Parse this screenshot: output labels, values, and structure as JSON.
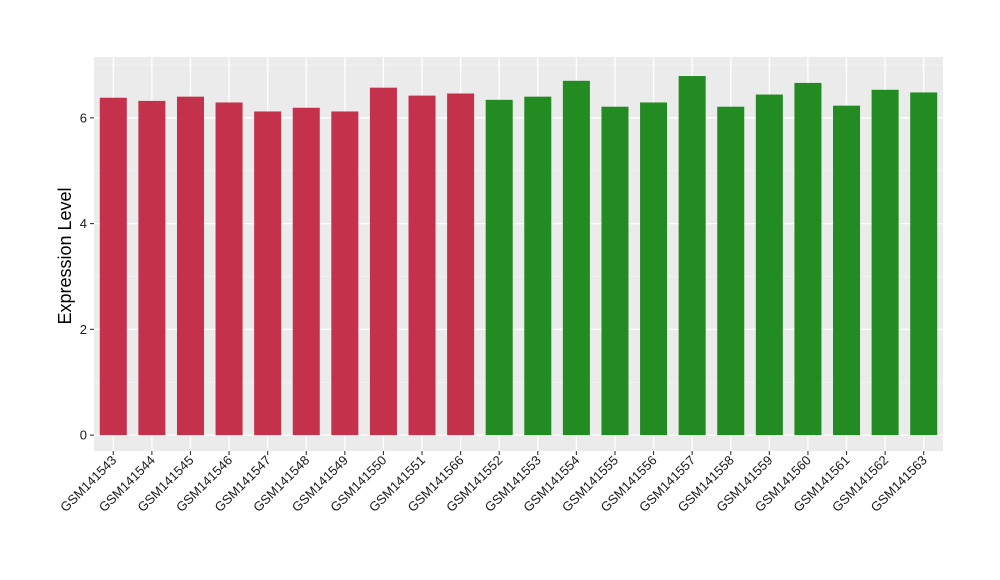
{
  "chart_data": {
    "type": "bar",
    "title": "",
    "xlabel": "",
    "ylabel": "Expression Level",
    "ylim": [
      -0.3,
      7.15
    ],
    "yticks": [
      0,
      2,
      4,
      6
    ],
    "grid": true,
    "legend": "none",
    "panel_color": "#ebebeb",
    "categories": [
      "GSM141543",
      "GSM141544",
      "GSM141545",
      "GSM141546",
      "GSM141547",
      "GSM141548",
      "GSM141549",
      "GSM141550",
      "GSM141551",
      "GSM141566",
      "GSM141552",
      "GSM141553",
      "GSM141554",
      "GSM141555",
      "GSM141556",
      "GSM141557",
      "GSM141558",
      "GSM141559",
      "GSM141560",
      "GSM141561",
      "GSM141562",
      "GSM141563"
    ],
    "values": [
      6.38,
      6.32,
      6.4,
      6.29,
      6.12,
      6.19,
      6.12,
      6.57,
      6.42,
      6.46,
      6.34,
      6.4,
      6.7,
      6.21,
      6.29,
      6.79,
      6.21,
      6.44,
      6.66,
      6.23,
      6.53,
      6.48
    ],
    "colors": [
      "#c4314b",
      "#c4314b",
      "#c4314b",
      "#c4314b",
      "#c4314b",
      "#c4314b",
      "#c4314b",
      "#c4314b",
      "#c4314b",
      "#c4314b",
      "#228b22",
      "#228b22",
      "#228b22",
      "#228b22",
      "#228b22",
      "#228b22",
      "#228b22",
      "#228b22",
      "#228b22",
      "#228b22",
      "#228b22",
      "#228b22"
    ]
  }
}
